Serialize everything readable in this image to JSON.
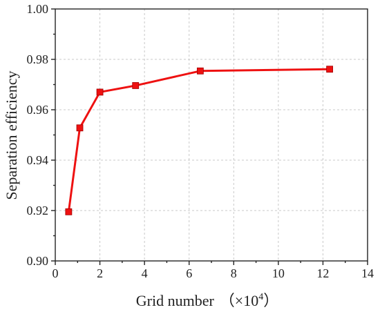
{
  "chart_data": {
    "type": "line",
    "xlabel": "Grid number",
    "xlabel_unit": "（×10",
    "xlabel_exp": "4",
    "xlabel_close": "）",
    "ylabel": "Separation efficiency",
    "xlim": [
      0,
      14
    ],
    "ylim": [
      0.9,
      1.0
    ],
    "xticks": [
      0,
      2,
      4,
      6,
      8,
      10,
      12,
      14
    ],
    "xtick_labels": [
      "0",
      "2",
      "4",
      "6",
      "8",
      "10",
      "12",
      "14"
    ],
    "yticks": [
      0.9,
      0.92,
      0.94,
      0.96,
      0.98,
      1.0
    ],
    "ytick_labels": [
      "0.90",
      "0.92",
      "0.94",
      "0.96",
      "0.98",
      "1.00"
    ],
    "grid": true,
    "series": [
      {
        "color": "#ee1111",
        "marker": "square",
        "x": [
          0.6,
          1.1,
          2.0,
          3.6,
          6.5,
          12.3
        ],
        "y": [
          0.9195,
          0.9528,
          0.967,
          0.9696,
          0.9754,
          0.9761
        ]
      }
    ]
  }
}
